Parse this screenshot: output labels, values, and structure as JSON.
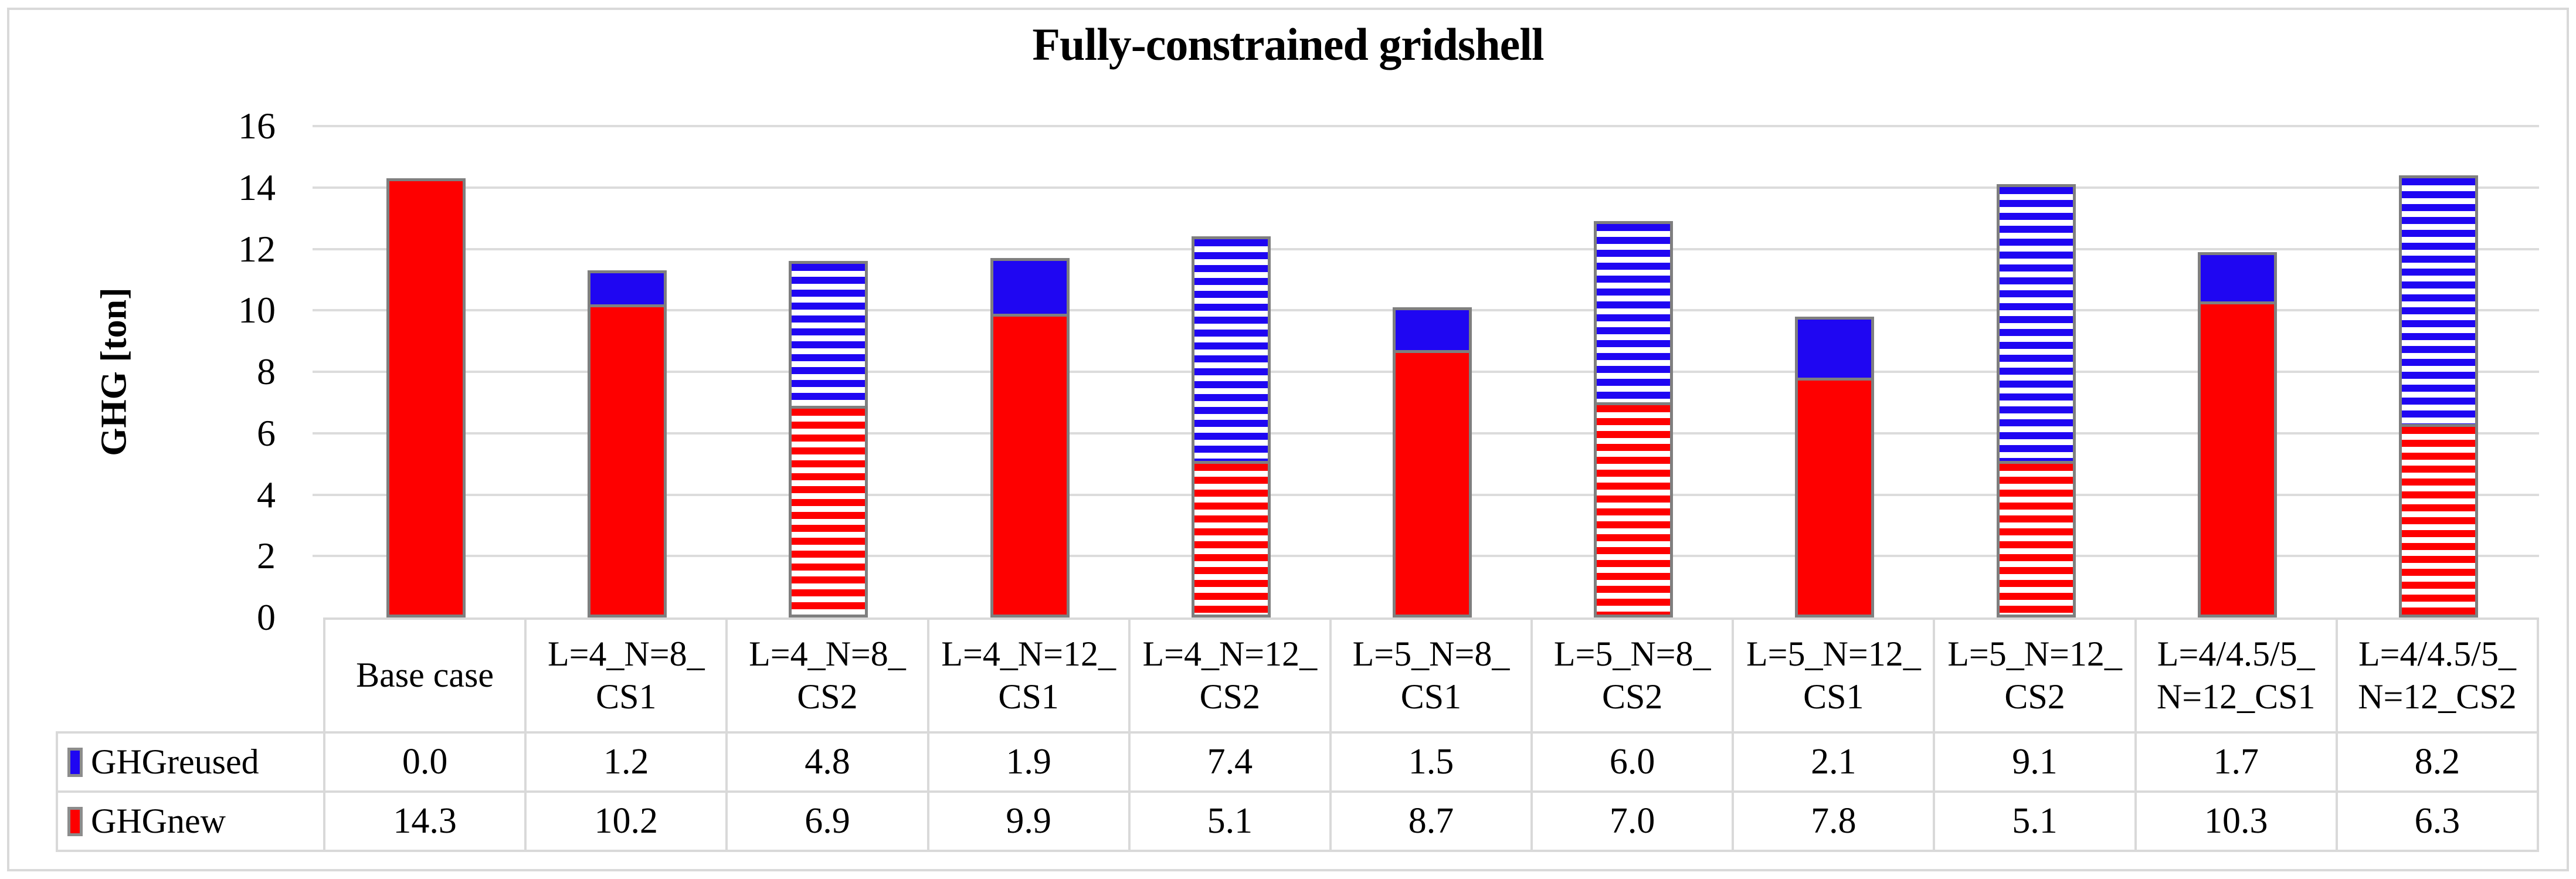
{
  "title": "Fully-constrained gridshell",
  "y_axis": {
    "label": "GHG [ton]",
    "min": 0,
    "max": 16,
    "step": 2
  },
  "colors": {
    "reused_blue": "#1f06f2",
    "new_red": "#fe0000",
    "bar_border_gray": "#7f7f7f",
    "gridline_gray": "#dcdcdc",
    "table_line_gray": "#d9d9d9"
  },
  "chart_data": {
    "type": "bar",
    "stacked": true,
    "title": "Fully-constrained gridshell",
    "xlabel": "",
    "ylabel": "GHG [ton]",
    "ylim": [
      0,
      16
    ],
    "ytick_step": 2,
    "grid": true,
    "legend_position": "data-table-left",
    "categories": [
      "Base case",
      "L=4_N=8_CS1",
      "L=4_N=8_CS2",
      "L=4_N=12_CS1",
      "L=4_N=12_CS2",
      "L=5_N=8_CS1",
      "L=5_N=8_CS2",
      "L=5_N=12_CS1",
      "L=5_N=12_CS2",
      "L=4/4.5/5_N=12_CS1",
      "L=4/4.5/5_N=12_CS2"
    ],
    "category_display": [
      "Base case",
      "L=4_N=8_\nCS1",
      "L=4_N=8_\nCS2",
      "L=4_N=12_\nCS1",
      "L=4_N=12_\nCS2",
      "L=5_N=8_\nCS1",
      "L=5_N=8_\nCS2",
      "L=5_N=12_\nCS1",
      "L=5_N=12_\nCS2",
      "L=4/4.5/5_\nN=12_CS1",
      "L=4/4.5/5_\nN=12_CS2"
    ],
    "fill_styles": [
      "solid",
      "solid",
      "striped",
      "solid",
      "striped",
      "solid",
      "striped",
      "solid",
      "striped",
      "solid",
      "striped"
    ],
    "series": [
      {
        "name": "GHGreused",
        "color": "#1f06f2",
        "stack_order": "top",
        "values": [
          0.0,
          1.2,
          4.8,
          1.9,
          7.4,
          1.5,
          6.0,
          2.1,
          9.1,
          1.7,
          8.2
        ]
      },
      {
        "name": "GHGnew",
        "color": "#fe0000",
        "stack_order": "bottom",
        "values": [
          14.3,
          10.2,
          6.9,
          9.9,
          5.1,
          8.7,
          7.0,
          7.8,
          5.1,
          10.3,
          6.3
        ]
      }
    ]
  },
  "table": {
    "legend_rows": [
      {
        "label": "GHGreused",
        "color": "#1f06f2",
        "values": [
          "0.0",
          "1.2",
          "4.8",
          "1.9",
          "7.4",
          "1.5",
          "6.0",
          "2.1",
          "9.1",
          "1.7",
          "8.2"
        ]
      },
      {
        "label": "GHGnew",
        "color": "#fe0000",
        "values": [
          "14.3",
          "10.2",
          "6.9",
          "9.9",
          "5.1",
          "8.7",
          "7.0",
          "7.8",
          "5.1",
          "10.3",
          "6.3"
        ]
      }
    ]
  }
}
